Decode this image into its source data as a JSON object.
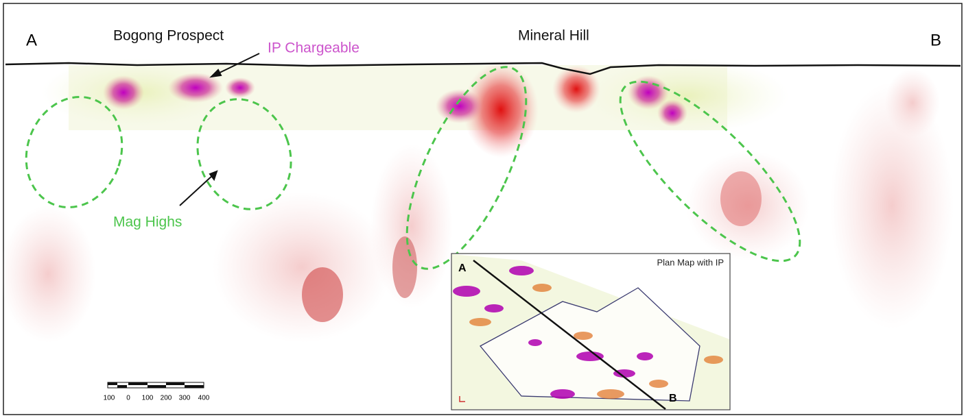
{
  "section": {
    "left_end": "A",
    "right_end": "B",
    "labels": [
      "Bogong Prospect",
      "Mineral Hill"
    ],
    "annotations": {
      "ip": "IP Chargeable",
      "mag": "Mag Highs"
    }
  },
  "scale_bar": {
    "labels": [
      100,
      0,
      100,
      200,
      300,
      400
    ]
  },
  "inset": {
    "title": "Plan Map with IP",
    "start": "A",
    "end": "B"
  }
}
